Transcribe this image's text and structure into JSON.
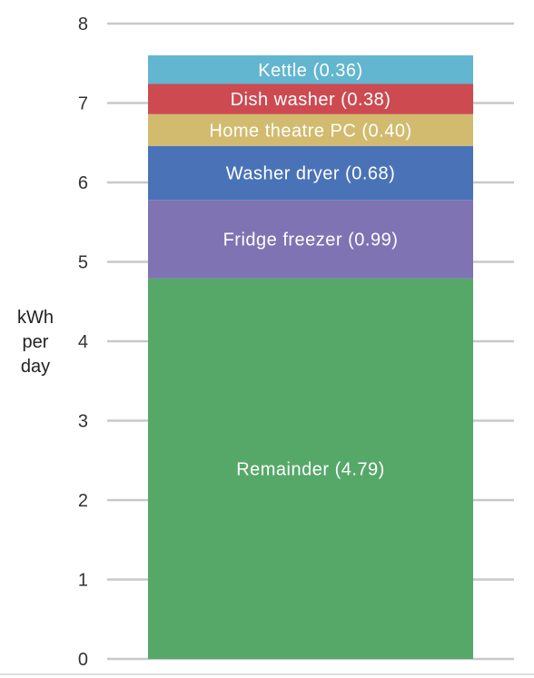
{
  "chart_data": {
    "type": "bar",
    "stacked": true,
    "categories": [
      ""
    ],
    "ylabel": [
      "kWh",
      "per",
      "day"
    ],
    "ylim": [
      0,
      8
    ],
    "yticks": [
      0,
      1,
      2,
      3,
      4,
      5,
      6,
      7,
      8
    ],
    "grid": true,
    "series": [
      {
        "name": "Remainder",
        "label": "Remainder (4.79)",
        "value": 4.79,
        "color": "#56a869"
      },
      {
        "name": "Fridge freezer",
        "label": "Fridge freezer (0.99)",
        "value": 0.99,
        "color": "#7f73b3"
      },
      {
        "name": "Washer dryer",
        "label": "Washer dryer (0.68)",
        "value": 0.68,
        "color": "#4a73b7"
      },
      {
        "name": "Home theatre PC",
        "label": "Home theatre PC (0.40)",
        "value": 0.4,
        "color": "#d2bb6e"
      },
      {
        "name": "Dish washer",
        "label": "Dish washer (0.38)",
        "value": 0.38,
        "color": "#cd4a51"
      },
      {
        "name": "Kettle",
        "label": "Kettle (0.36)",
        "value": 0.36,
        "color": "#62b6d0"
      }
    ]
  }
}
